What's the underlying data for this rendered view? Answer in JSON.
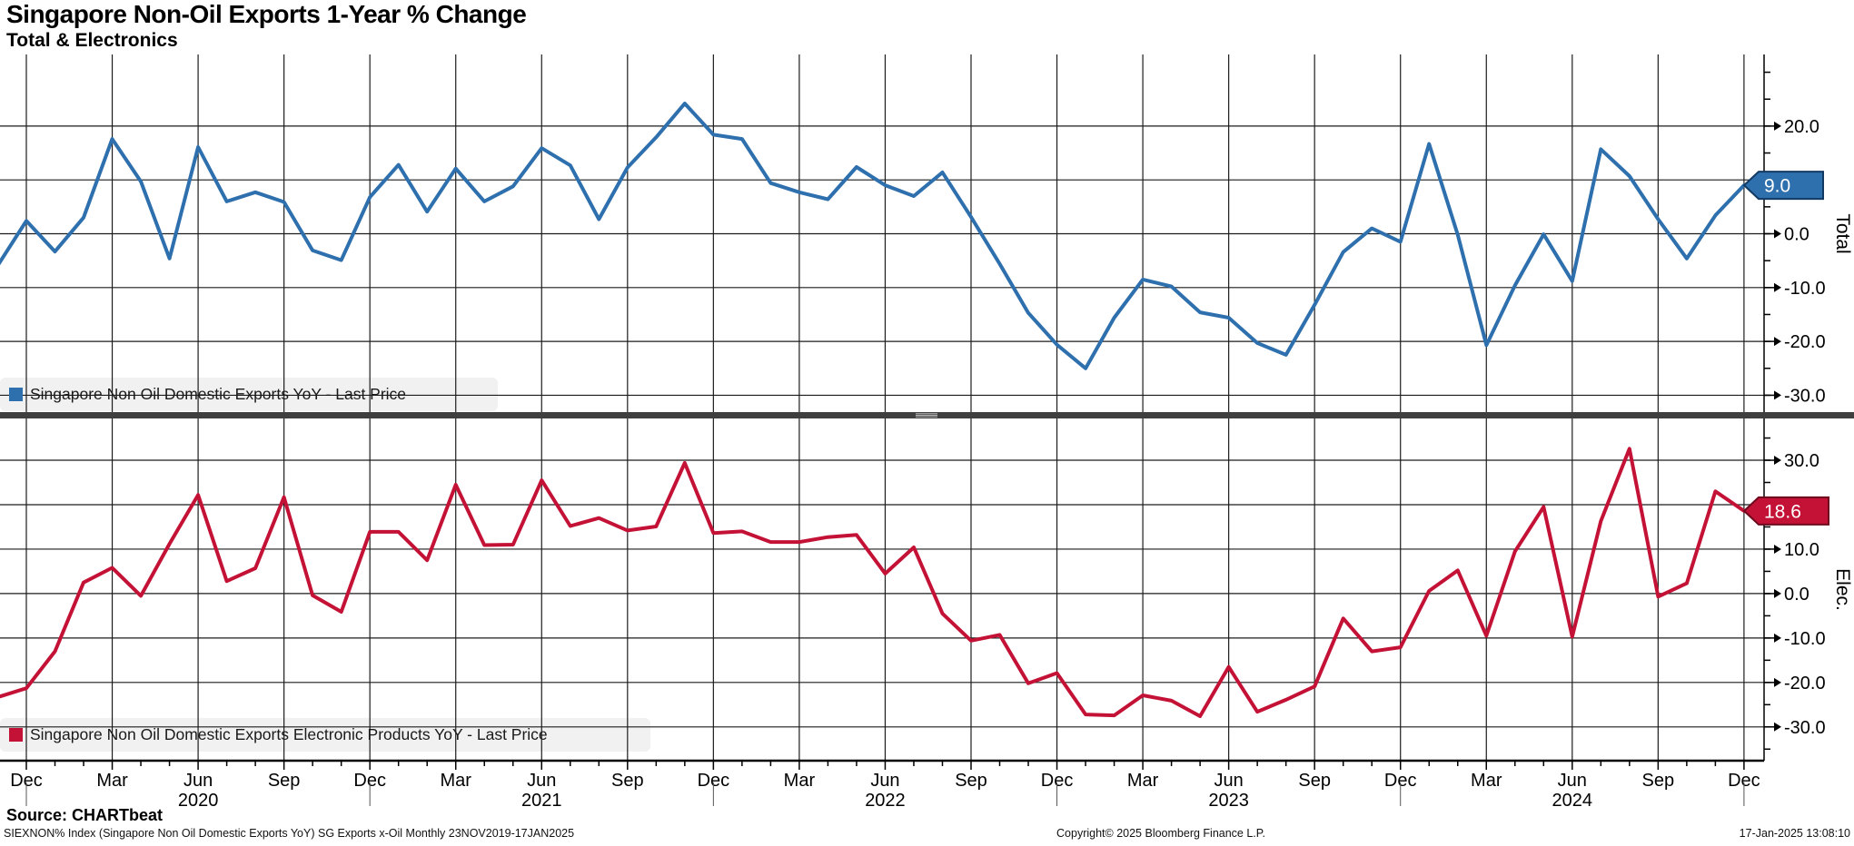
{
  "header": {
    "title": "Singapore Non-Oil Exports 1-Year % Change",
    "subtitle": "Total & Electronics"
  },
  "legends": {
    "total": "Singapore Non Oil Domestic Exports YoY - Last Price",
    "electronics": "Singapore Non Oil Domestic Exports Electronic Products YoY - Last Price"
  },
  "footer": {
    "source": "Source: CHARTbeat",
    "ticker_line": "SIEXNON% Index (Singapore Non Oil Domestic Exports YoY) SG Exports x-Oil  Monthly 23NOV2019-17JAN2025",
    "copyright": "Copyright© 2025 Bloomberg Finance L.P.",
    "timestamp": "17-Jan-2025 13:08:10"
  },
  "colors": {
    "total_line": "#2e6fad",
    "total_tag_border": "#123a63",
    "electronics_line": "#c41236",
    "electronics_tag_border": "#6d0a1d",
    "grid": "#1c1c1c",
    "divider": "#3f3f3f",
    "legend_bg": "#f1f1f1",
    "tag_text": "#ffffff"
  },
  "chart_data": {
    "type": "line",
    "title": "Singapore Non-Oil Exports 1-Year % Change",
    "subtitle": "Total & Electronics",
    "x_months": [
      "Nov 2019",
      "Dec 2019",
      "Jan 2020",
      "Feb 2020",
      "Mar 2020",
      "Apr 2020",
      "May 2020",
      "Jun 2020",
      "Jul 2020",
      "Aug 2020",
      "Sep 2020",
      "Oct 2020",
      "Nov 2020",
      "Dec 2020",
      "Jan 2021",
      "Feb 2021",
      "Mar 2021",
      "Apr 2021",
      "May 2021",
      "Jun 2021",
      "Jul 2021",
      "Aug 2021",
      "Sep 2021",
      "Oct 2021",
      "Nov 2021",
      "Dec 2021",
      "Jan 2022",
      "Feb 2022",
      "Mar 2022",
      "Apr 2022",
      "May 2022",
      "Jun 2022",
      "Jul 2022",
      "Aug 2022",
      "Sep 2022",
      "Oct 2022",
      "Nov 2022",
      "Dec 2022",
      "Jan 2023",
      "Feb 2023",
      "Mar 2023",
      "Apr 2023",
      "May 2023",
      "Jun 2023",
      "Jul 2023",
      "Aug 2023",
      "Sep 2023",
      "Oct 2023",
      "Nov 2023",
      "Dec 2023",
      "Jan 2024",
      "Feb 2024",
      "Mar 2024",
      "Apr 2024",
      "May 2024",
      "Jun 2024",
      "Jul 2024",
      "Aug 2024",
      "Sep 2024",
      "Oct 2024",
      "Nov 2024",
      "Dec 2024"
    ],
    "series": [
      {
        "name": "Singapore Non Oil Domestic Exports YoY",
        "panel": "total",
        "color": "#2e6fad",
        "last_price": "9.0",
        "values": [
          -5.9,
          2.4,
          -3.3,
          3.0,
          17.6,
          9.7,
          -4.6,
          16.1,
          6.0,
          7.7,
          5.9,
          -3.1,
          -4.9,
          6.8,
          12.8,
          4.1,
          12.1,
          6.0,
          8.8,
          15.9,
          12.7,
          2.7,
          12.3,
          17.9,
          24.2,
          18.4,
          17.6,
          9.4,
          7.7,
          6.4,
          12.4,
          9.0,
          7.0,
          11.4,
          3.1,
          -5.6,
          -14.7,
          -20.6,
          -25.0,
          -15.6,
          -8.5,
          -9.8,
          -14.6,
          -15.6,
          -20.3,
          -22.5,
          -13.2,
          -3.4,
          1.0,
          -1.5,
          16.7,
          -0.2,
          -20.7,
          -9.6,
          -0.1,
          -8.8,
          15.7,
          10.7,
          2.7,
          -4.6,
          3.4,
          9.0
        ]
      },
      {
        "name": "Singapore Non Oil Domestic Exports Electronic Products YoY",
        "panel": "elec",
        "color": "#c41236",
        "last_price": "18.6",
        "values": [
          -23.3,
          -21.3,
          -13.0,
          2.5,
          5.8,
          -0.5,
          11.2,
          22.2,
          2.8,
          5.7,
          21.7,
          -0.4,
          -4.1,
          13.9,
          13.9,
          7.5,
          24.5,
          10.9,
          11.0,
          25.5,
          15.2,
          17.0,
          14.2,
          15.1,
          29.4,
          13.6,
          14.0,
          11.6,
          11.6,
          12.7,
          13.2,
          4.5,
          10.4,
          -4.5,
          -10.6,
          -9.3,
          -20.2,
          -17.9,
          -27.2,
          -27.4,
          -22.9,
          -24.1,
          -27.6,
          -16.5,
          -26.6,
          -23.9,
          -20.9,
          -5.6,
          -13.0,
          -12.1,
          0.6,
          5.2,
          -9.5,
          9.5,
          19.5,
          -9.7,
          16.3,
          32.6,
          -0.7,
          2.3,
          23.0,
          18.6
        ]
      }
    ],
    "panels": [
      {
        "id": "total",
        "axis_label": "Total",
        "yticks": [
          20.0,
          10.0,
          0.0,
          -10.0,
          -20.0,
          -30.0
        ],
        "ylim": [
          -33.3,
          33.3
        ],
        "last_price": "9.0"
      },
      {
        "id": "elec",
        "axis_label": "Elec.",
        "yticks": [
          30.0,
          20.0,
          10.0,
          0.0,
          -10.0,
          -20.0,
          -30.0
        ],
        "ylim": [
          -37.6,
          39.4
        ],
        "last_price": "18.6"
      }
    ],
    "xticks": {
      "month_offsets": [
        0,
        3,
        6,
        9,
        12,
        15,
        18,
        21,
        24,
        27,
        30,
        33,
        36,
        39,
        42,
        45,
        48,
        51,
        54,
        57,
        60
      ],
      "labels": [
        "Dec",
        "Mar",
        "Jun",
        "Sep",
        "Dec",
        "Mar",
        "Jun",
        "Sep",
        "Dec",
        "Mar",
        "Jun",
        "Sep",
        "Dec",
        "Mar",
        "Jun",
        "Sep",
        "Dec",
        "Mar",
        "Jun",
        "Sep",
        "Dec"
      ]
    },
    "years": [
      {
        "label": "2020",
        "center_month": 6
      },
      {
        "label": "2021",
        "center_month": 18
      },
      {
        "label": "2022",
        "center_month": 30
      },
      {
        "label": "2023",
        "center_month": 42
      },
      {
        "label": "2024",
        "center_month": 54
      }
    ],
    "year_separator_months": [
      0,
      12,
      24,
      36,
      48,
      60
    ],
    "legend_position": "bottom-left of each panel",
    "grid": true
  }
}
